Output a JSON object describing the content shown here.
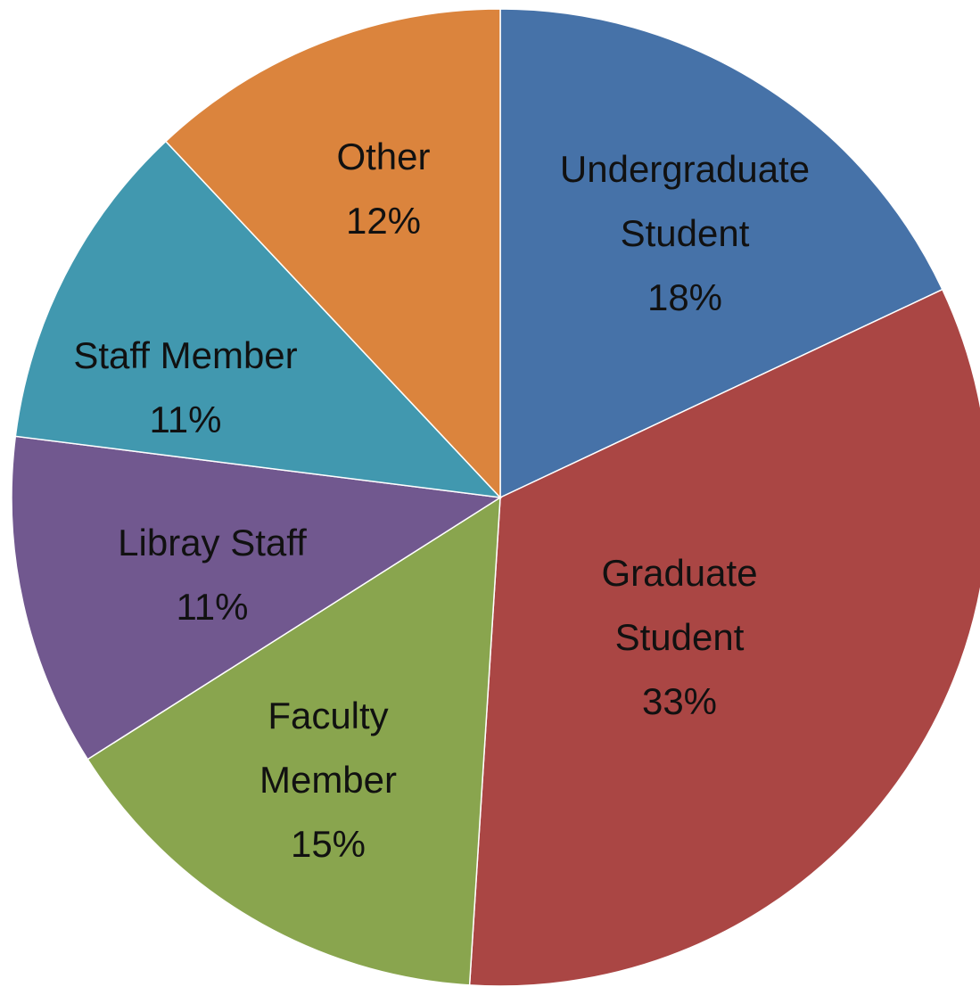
{
  "chart_data": {
    "type": "pie",
    "categories": [
      "Undergraduate Student",
      "Graduate Student",
      "Faculty Member",
      "Libray Staff",
      "Staff Member",
      "Other"
    ],
    "values": [
      18,
      33,
      15,
      11,
      11,
      12
    ],
    "value_labels": [
      "18%",
      "33%",
      "15%",
      "11%",
      "11%",
      "12%"
    ],
    "colors": [
      "#4672a8",
      "#aa4644",
      "#89a54e",
      "#71588f",
      "#4198af",
      "#db843d"
    ]
  }
}
